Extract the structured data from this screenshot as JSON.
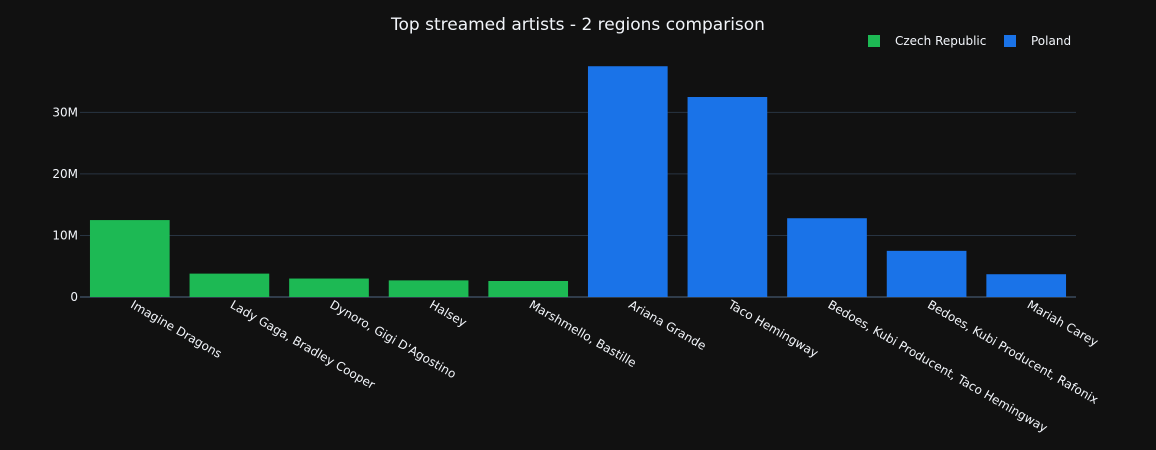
{
  "chart_data": {
    "type": "bar",
    "title": "Top streamed artists - 2 regions comparison",
    "xlabel": "",
    "ylabel": "",
    "ylim": [
      0,
      39000000
    ],
    "yticks": [
      0,
      10000000,
      20000000,
      30000000
    ],
    "ytick_labels": [
      "0",
      "10M",
      "20M",
      "30M"
    ],
    "grid": true,
    "legend_position": "top-right",
    "categories": [
      "Imagine Dragons",
      "Lady Gaga, Bradley Cooper",
      "Dynoro, Gigi D'Agostino",
      "Halsey",
      "Marshmello, Bastille",
      "Ariana Grande",
      "Taco Hemingway",
      "Bedoes, Kubi Producent, Taco Hemingway",
      "Bedoes, Kubi Producent, Rafonix",
      "Mariah Carey"
    ],
    "series": [
      {
        "name": "Czech Republic",
        "color": "#1db954",
        "values": [
          12500000,
          3800000,
          3000000,
          2700000,
          2600000,
          null,
          null,
          null,
          null,
          null
        ]
      },
      {
        "name": "Poland",
        "color": "#1a73e8",
        "values": [
          null,
          null,
          null,
          null,
          null,
          37500000,
          32500000,
          12800000,
          7500000,
          3700000
        ]
      }
    ]
  },
  "colors": {
    "background": "#111111",
    "text": "#f2f5fa",
    "grid": "#283442",
    "zeroline": "#506784"
  }
}
